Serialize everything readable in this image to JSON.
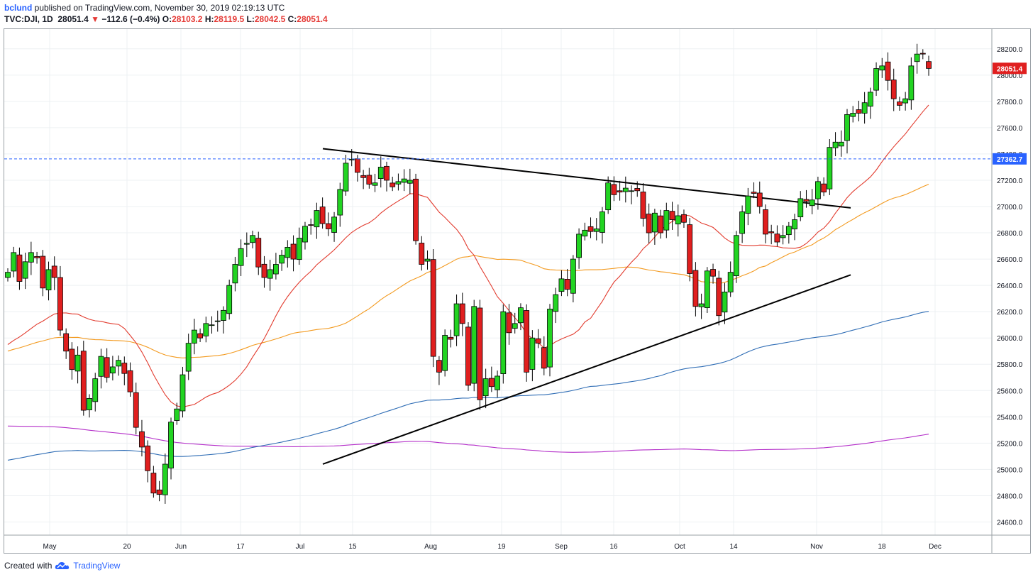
{
  "header": {
    "author": "bclund",
    "published": " published on TradingView.com, November 30, 2019 02:19:13 UTC",
    "symbol": "TVC:DJI, 1D",
    "last": "28051.4",
    "arrow": "▼",
    "change": "−112.6 (−0.4%)",
    "o_label": "O:",
    "o_value": "28103.2",
    "h_label": "H:",
    "h_value": "28119.5",
    "l_label": "L:",
    "l_value": "28042.5",
    "c_label": "C:",
    "c_value": "28051.4"
  },
  "footer": {
    "created_with": "Created with",
    "brand": "TradingView",
    "logo_icon": "tradingview-cloud-icon"
  },
  "colors": {
    "up": "#22d422",
    "down": "#e01f1f",
    "ma20": "#e23b2e",
    "ma50": "#f39a1f",
    "ma100": "#2f6db5",
    "ma200": "#b42fc9",
    "hline": "#2962ff",
    "trend": "#000000"
  },
  "chart_data": {
    "type": "candlestick",
    "x_labels": [
      "May",
      "20",
      "Jun",
      "17",
      "Jul",
      "15",
      "Aug",
      "19",
      "Sep",
      "16",
      "Oct",
      "14",
      "Nov",
      "18",
      "Dec"
    ],
    "y_ticks": [
      24600,
      24800,
      25000,
      25200,
      25400,
      25600,
      25800,
      26000,
      26200,
      26400,
      26600,
      26800,
      27000,
      27200,
      27400,
      27600,
      27800,
      28000,
      28200
    ],
    "ylim": [
      24500,
      28350
    ],
    "last_price_label": "28051.4",
    "horizontal_line_label": "27362.7",
    "horizontal_line_value": 27362.7,
    "closes": [
      26500,
      26650,
      26430,
      26580,
      26650,
      26610,
      26380,
      26520,
      26460,
      26060,
      25900,
      25760,
      25870,
      25450,
      25540,
      25690,
      25860,
      25700,
      25780,
      25830,
      25730,
      25590,
      25320,
      25170,
      24990,
      24820,
      24810,
      25040,
      25360,
      25460,
      25720,
      25960,
      26060,
      26000,
      26110,
      26100,
      26130,
      26210,
      26400,
      26560,
      26680,
      26720,
      26780,
      26540,
      26460,
      26520,
      26560,
      26630,
      26690,
      26600,
      26760,
      26850,
      26860,
      26970,
      26870,
      26830,
      26920,
      27130,
      27330,
      27360,
      27260,
      27220,
      27170,
      27180,
      27300,
      27200,
      27150,
      27190,
      27210,
      27200,
      26740,
      26560,
      26600,
      25860,
      25740,
      26020,
      25990,
      26260,
      26110,
      25640,
      26240,
      25530,
      25690,
      25630,
      25710,
      26200,
      26040,
      26110,
      26230,
      25740,
      26000,
      25960,
      25770,
      26220,
      26330,
      26450,
      26370,
      26600,
      26790,
      26820,
      26810,
      26830,
      26960,
      27180,
      27090,
      27110,
      27140,
      27120,
      27120,
      26910,
      26800,
      26950,
      26800,
      26970,
      26900,
      26930,
      26880,
      26490,
      26240,
      26260,
      26510,
      26470,
      26170,
      26350,
      26500,
      26780,
      26960,
      27080,
      27100,
      27000,
      26790,
      26800,
      26730,
      26780,
      26850,
      26900,
      27060,
      27040,
      27050,
      27190,
      27110,
      27450,
      27490,
      27490,
      27700,
      27710,
      27710,
      27790,
      27870,
      28050,
      28070,
      27960,
      27820,
      27770,
      27820,
      28070,
      28160,
      28160,
      28051
    ]
  }
}
